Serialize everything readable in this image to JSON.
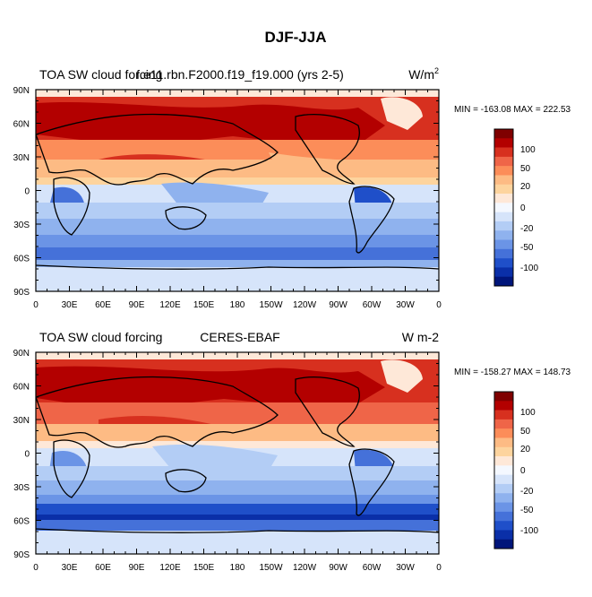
{
  "title": "DJF-JJA",
  "panels": [
    {
      "left_label": "TOA SW cloud forcing",
      "center_label": "f.e11.rbn.F2000.f19_f19.000 (yrs 2-5)",
      "units_main": "W/m",
      "units_sup": "2",
      "stats": "MIN = -163.08 MAX = 222.53",
      "colorbar_labels": [
        "100",
        "50",
        "20",
        "0",
        "-20",
        "-50",
        "-100"
      ]
    },
    {
      "left_label": "TOA SW cloud forcing",
      "center_label": "CERES-EBAF",
      "units_main": "W m-2",
      "units_sup": "",
      "stats": "MIN = -158.27 MAX = 148.73",
      "colorbar_labels": [
        "100",
        "50",
        "20",
        "0",
        "-20",
        "-50",
        "-100"
      ]
    }
  ],
  "lat_labels": [
    "90N",
    "60N",
    "30N",
    "0",
    "30S",
    "60S",
    "90S"
  ],
  "lon_labels": [
    "0",
    "30E",
    "60E",
    "90E",
    "120E",
    "150E",
    "180",
    "150W",
    "120W",
    "90W",
    "60W",
    "30W",
    "0"
  ],
  "colors": {
    "colorbar": [
      "#7f0000",
      "#b30000",
      "#d7301f",
      "#ef6548",
      "#fc8d59",
      "#fdbb84",
      "#fdd49e",
      "#fee8d8",
      "#f4f8ff",
      "#d6e4fa",
      "#b3cdf5",
      "#8fb2ee",
      "#6b94e6",
      "#4571d9",
      "#1f4fc9",
      "#0a2fa8",
      "#00157a"
    ]
  }
}
